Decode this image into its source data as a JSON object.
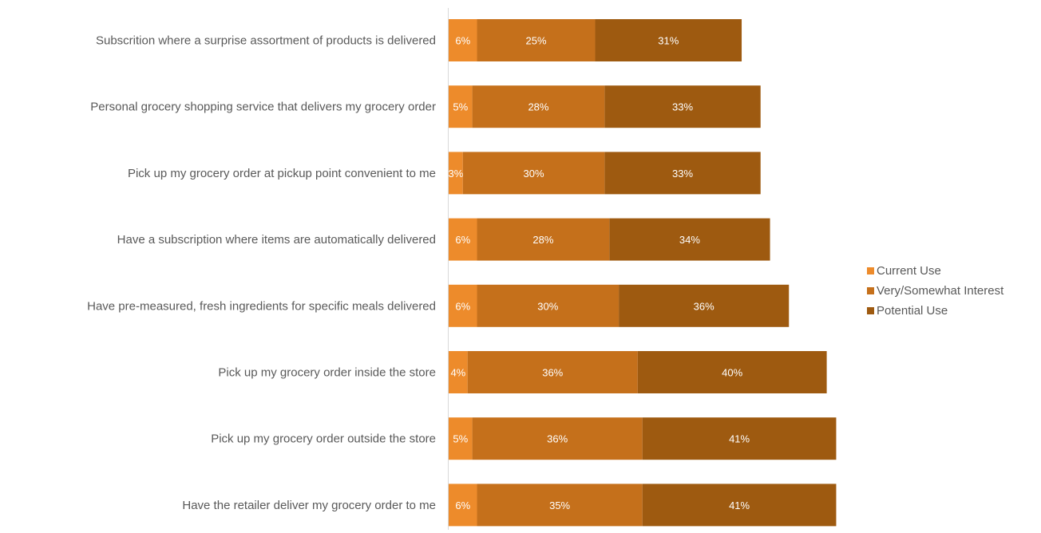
{
  "chart_data": {
    "type": "bar",
    "orientation": "horizontal",
    "stacked": true,
    "title": "",
    "xlabel": "",
    "ylabel": "",
    "xlim": [
      0,
      82
    ],
    "grid": false,
    "legend_position": "right",
    "categories": [
      "Subscrition where a surprise assortment of products is delivered",
      "Personal grocery shopping service that delivers my grocery order",
      "Pick up my grocery order at pickup point convenient to me",
      "Have a subscription where items are automatically delivered",
      "Have pre-measured, fresh ingredients for specific meals delivered",
      "Pick up my grocery order inside the store",
      "Pick up my grocery order outside the store",
      "Have the retailer deliver my grocery order to me"
    ],
    "series": [
      {
        "name": "Current Use",
        "color": "#ED8B2B",
        "values": [
          6,
          5,
          3,
          6,
          6,
          4,
          5,
          6
        ],
        "labels": [
          "6%",
          "5%",
          "3%",
          "6%",
          "6%",
          "4%",
          "5%",
          "6%"
        ]
      },
      {
        "name": "Very/Somewhat Interest",
        "color": "#C5701B",
        "values": [
          25,
          28,
          30,
          28,
          30,
          36,
          36,
          35
        ],
        "labels": [
          "25%",
          "28%",
          "30%",
          "28%",
          "30%",
          "36%",
          "36%",
          "35%"
        ]
      },
      {
        "name": "Potential Use",
        "color": "#9E5A10",
        "values": [
          31,
          33,
          33,
          34,
          36,
          40,
          41,
          41
        ],
        "labels": [
          "31%",
          "33%",
          "33%",
          "34%",
          "36%",
          "40%",
          "41%",
          "41%"
        ]
      }
    ]
  }
}
